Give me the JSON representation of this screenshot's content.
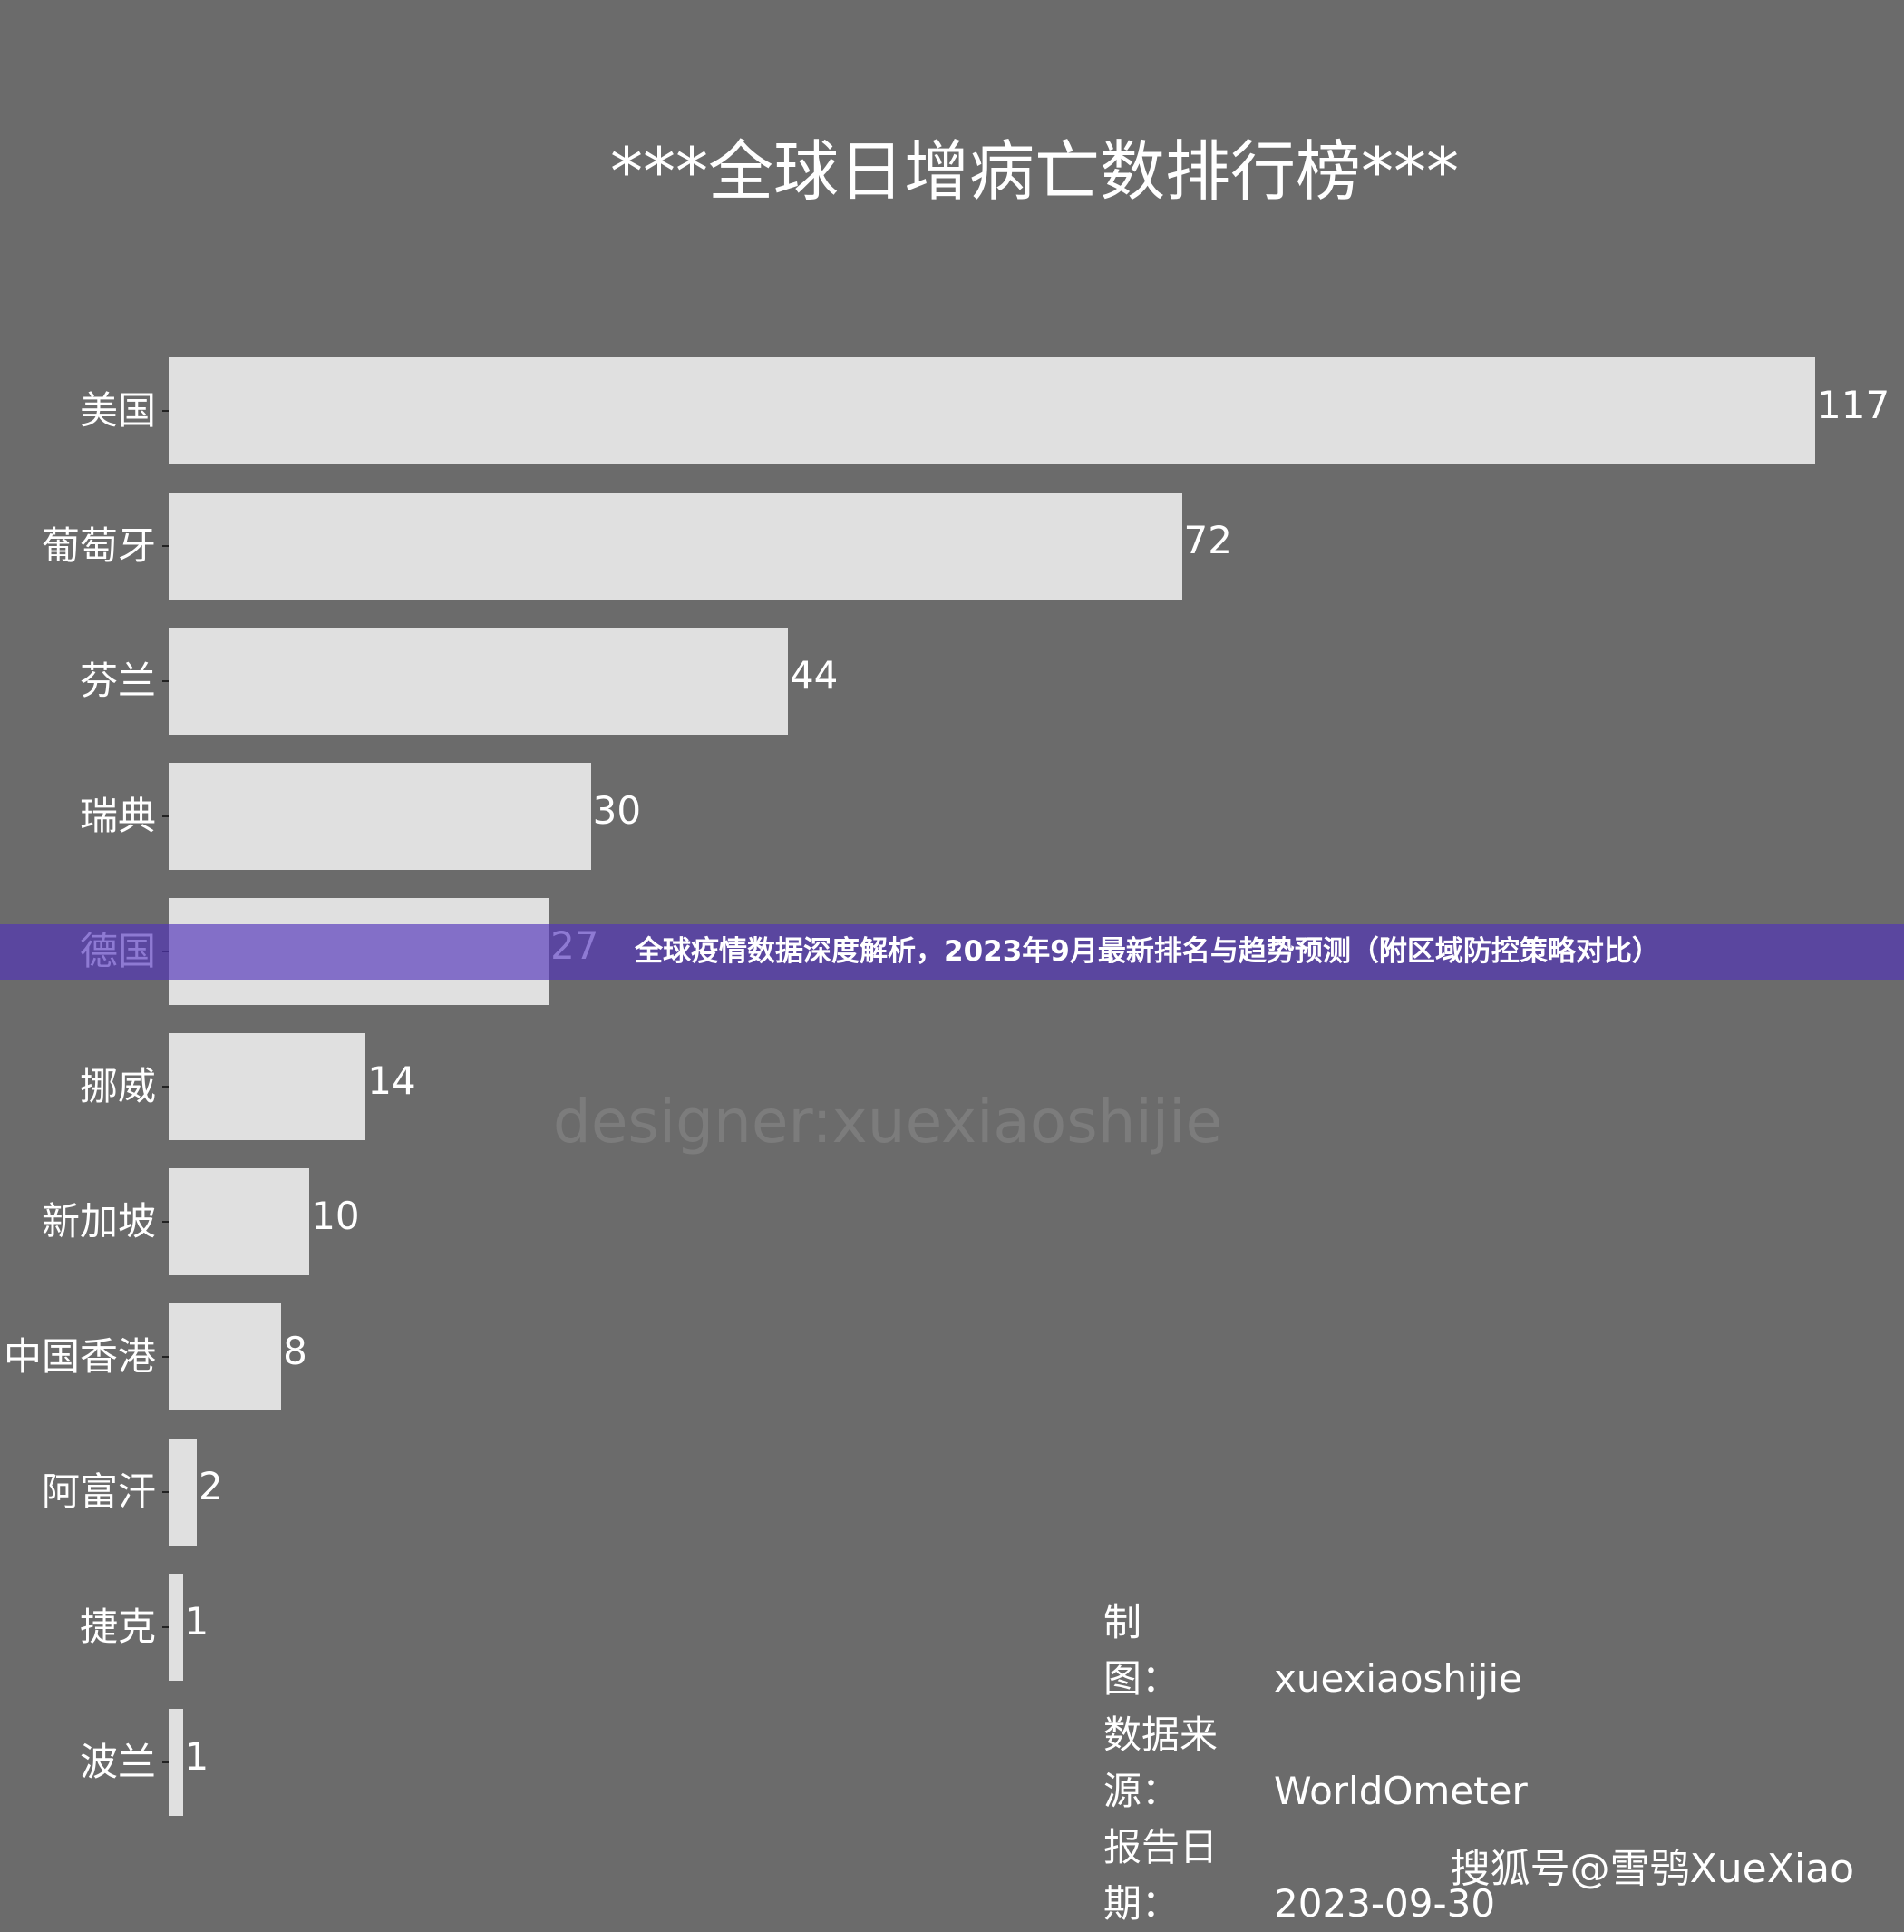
{
  "chart_data": {
    "type": "bar",
    "orientation": "horizontal",
    "title": "***全球日增病亡数排行榜***",
    "categories": [
      "美国",
      "葡萄牙",
      "芬兰",
      "瑞典",
      "德国",
      "挪威",
      "新加坡",
      "中国香港",
      "阿富汗",
      "捷克",
      "波兰"
    ],
    "values": [
      117,
      72,
      44,
      30,
      27,
      14,
      10,
      8,
      2,
      1,
      1
    ],
    "xlim": [
      0,
      117
    ],
    "grid": false,
    "data_labels": true,
    "colors": {
      "background": "#6b6b6b",
      "bar": "#e0e0e0"
    }
  },
  "watermark": "designer:xuexiaoshijie",
  "info": [
    {
      "key": "制　　图：",
      "value": "xuexiaoshijie"
    },
    {
      "key": "数据来源：",
      "value": "WorldOmeter"
    },
    {
      "key": "报告日期：",
      "value": "2023-09-30"
    }
  ],
  "banner": {
    "text": "全球疫情数据深度解析，2023年9月最新排名与趋势预测（附区域防控策略对比）",
    "color": "#5b4a9f"
  },
  "source_mark": "搜狐号@雪鸮XueXiao"
}
